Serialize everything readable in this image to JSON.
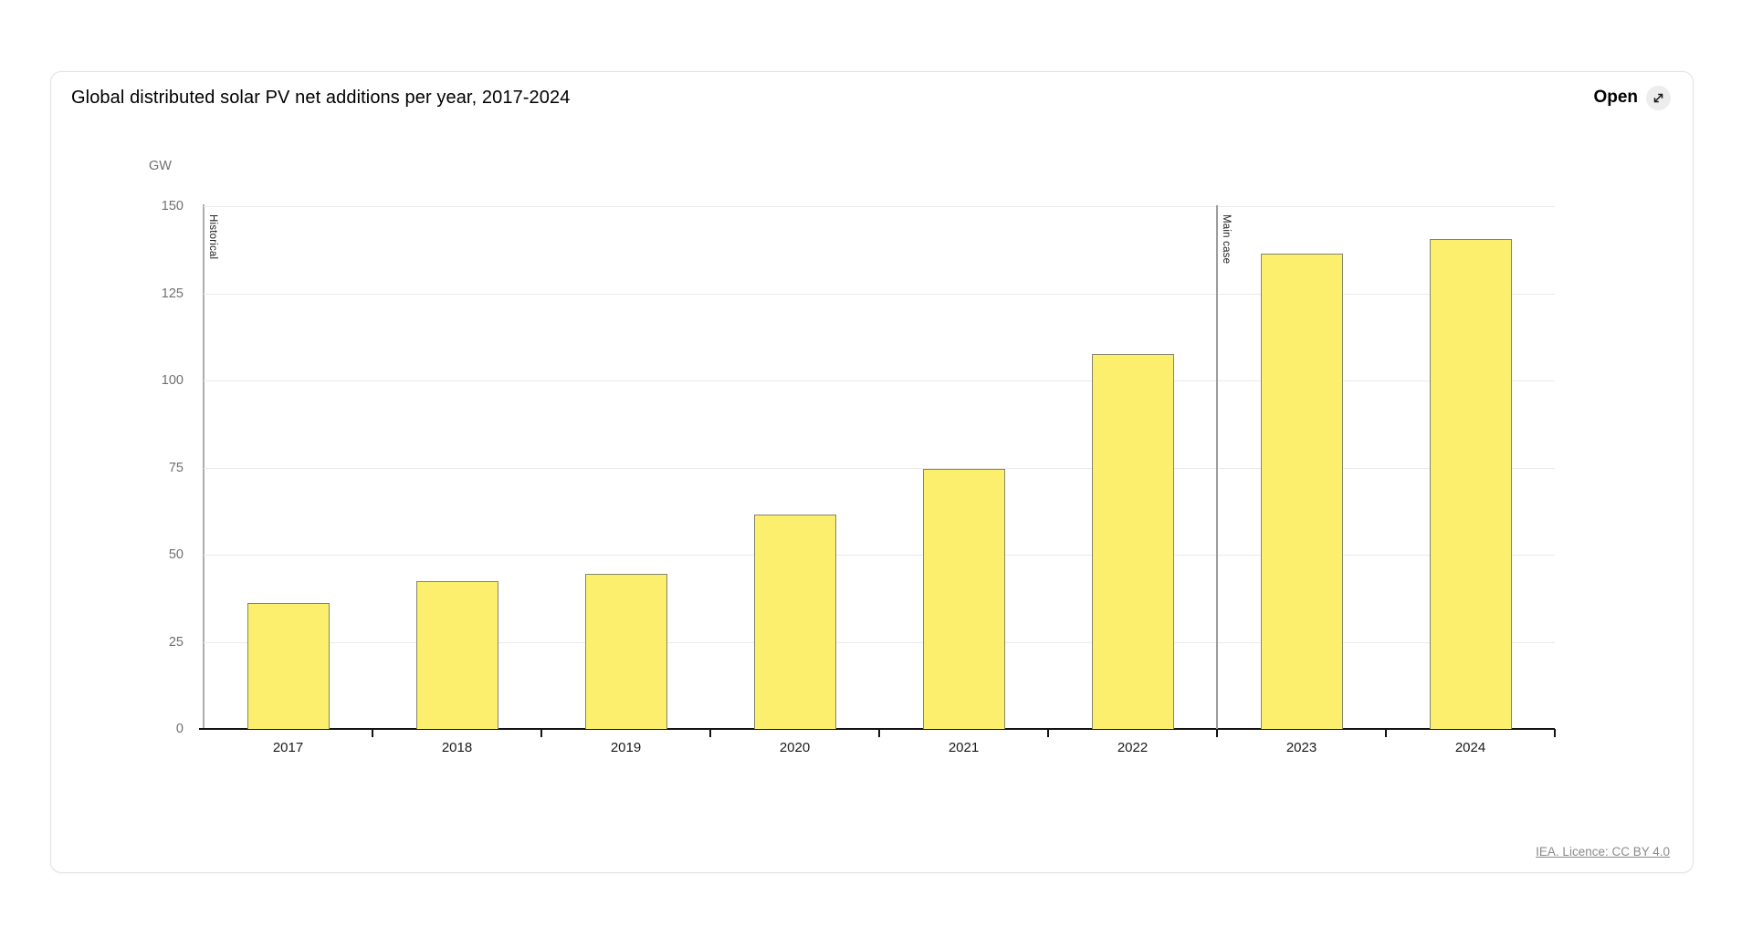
{
  "card": {
    "title": "Global distributed solar PV net additions per year, 2017-2024",
    "open_label": "Open",
    "open_icon": "expand-diagonal-arrow-icon",
    "footer_link": "IEA. Licence: CC BY 4.0"
  },
  "chart_data": {
    "type": "bar",
    "title": "Global distributed solar PV net additions per year, 2017-2024",
    "categories": [
      "2017",
      "2018",
      "2019",
      "2020",
      "2021",
      "2022",
      "2023",
      "2024"
    ],
    "values": [
      36,
      42.5,
      44.5,
      61.5,
      74.5,
      107.5,
      136.5,
      140.5
    ],
    "ylabel": "GW",
    "xlabel": "",
    "ylim": [
      0,
      150
    ],
    "yticks": [
      0,
      25,
      50,
      75,
      100,
      125,
      150
    ],
    "grid": "horizontal",
    "legend": "none",
    "annotations": [
      {
        "label": "Historical",
        "divider_at_category_index": 0
      },
      {
        "label": "Main case",
        "divider_at_category_index": 6
      }
    ],
    "colors": {
      "bar_fill": "#fbef6d",
      "bar_border": "#85856c",
      "gridline": "#ebebeb",
      "axis_line": "#adadad",
      "divider_line": "#9c9c9c",
      "baseline": "#141414",
      "y_tick_label": "#6f6f6f",
      "x_tick_label": "#1a1a1a"
    }
  }
}
